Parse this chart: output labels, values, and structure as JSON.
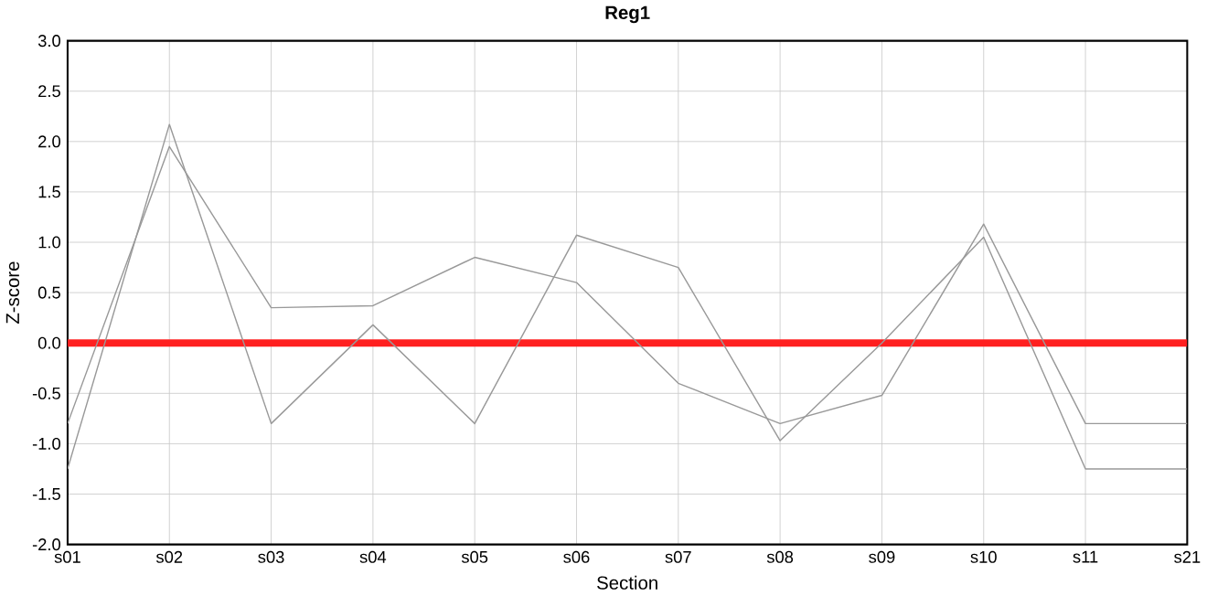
{
  "chart_data": {
    "type": "line",
    "title": "Reg1",
    "xlabel": "Section",
    "ylabel": "Z-score",
    "categories": [
      "s01",
      "s02",
      "s03",
      "s04",
      "s05",
      "s06",
      "s07",
      "s08",
      "s09",
      "s10",
      "s11",
      "s21"
    ],
    "series": [
      {
        "color": "#999999",
        "values": [
          -0.8,
          1.95,
          0.35,
          0.37,
          0.85,
          0.6,
          -0.4,
          -0.8,
          -0.52,
          1.18,
          -0.8,
          -0.8
        ]
      },
      {
        "color": "#999999",
        "values": [
          -1.25,
          2.17,
          -0.8,
          0.18,
          -0.8,
          1.07,
          0.75,
          -0.97,
          0.0,
          1.05,
          -1.25,
          -1.25
        ]
      }
    ],
    "ylim": [
      -2.0,
      3.0
    ],
    "yticks": [
      {
        "value": -2.0,
        "label": "-2.0"
      },
      {
        "value": -1.5,
        "label": "-1.5"
      },
      {
        "value": -1.0,
        "label": "-1.0"
      },
      {
        "value": -0.5,
        "label": "-0.5"
      },
      {
        "value": 0.0,
        "label": "0.0"
      },
      {
        "value": 0.5,
        "label": "0.5"
      },
      {
        "value": 1.0,
        "label": "1.0"
      },
      {
        "value": 1.5,
        "label": "1.5"
      },
      {
        "value": 2.0,
        "label": "2.0"
      },
      {
        "value": 2.5,
        "label": "2.5"
      },
      {
        "value": 3.0,
        "label": "3.0"
      }
    ],
    "ref_lines": [
      {
        "axis": "y",
        "value": 0,
        "color": "#ff2020"
      }
    ],
    "grid": true,
    "marker": "none",
    "line_style": "solid"
  }
}
